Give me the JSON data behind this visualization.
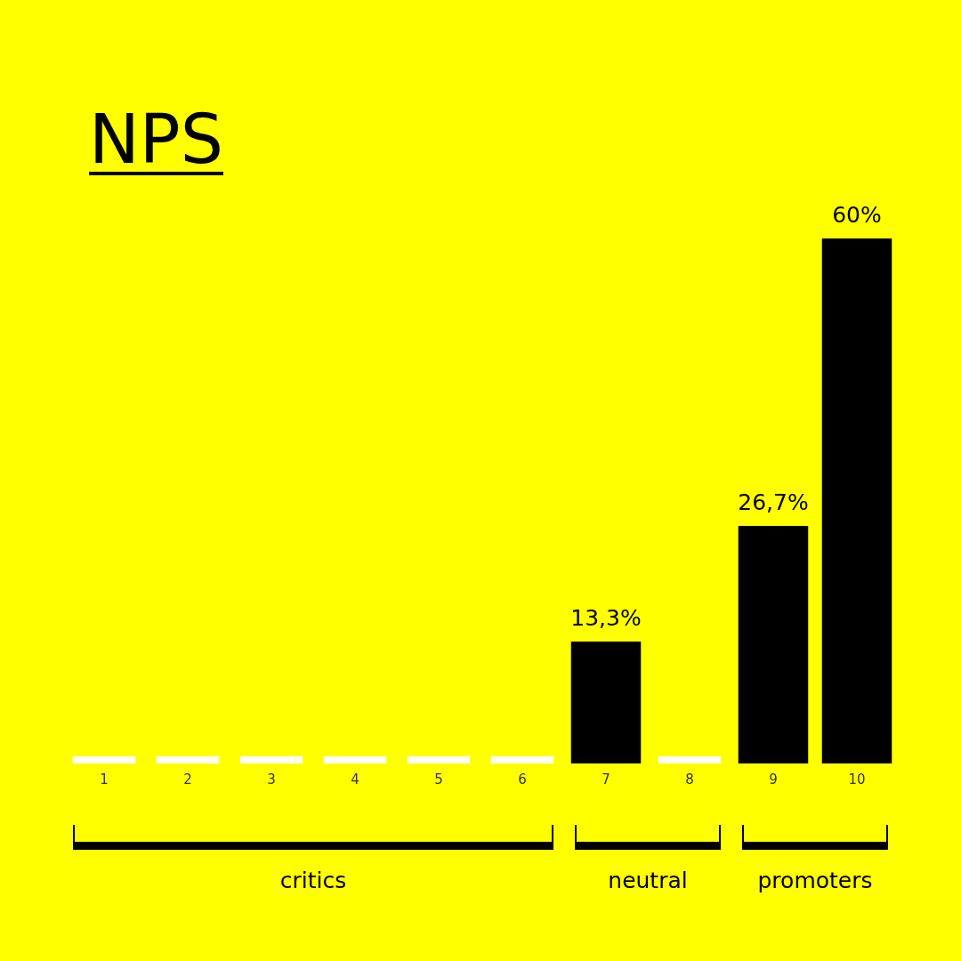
{
  "chart_data": {
    "type": "bar",
    "title": "NPS",
    "categories": [
      "1",
      "2",
      "3",
      "4",
      "5",
      "6",
      "7",
      "8",
      "9",
      "10"
    ],
    "values": [
      0,
      0,
      0,
      0,
      0,
      0,
      13.3,
      0,
      26.7,
      60
    ],
    "colors": [
      "#ffffff",
      "#ffffff",
      "#ffffff",
      "#ffffff",
      "#ffffff",
      "#ffffff",
      "#000000",
      "#ffffff",
      "#000000",
      "#000000"
    ],
    "value_labels": [
      null,
      null,
      null,
      null,
      null,
      null,
      "13,3%",
      null,
      "26,7%",
      "60%"
    ],
    "annotations": [
      "critics",
      "neutral",
      "promoters"
    ],
    "grid": false
  }
}
